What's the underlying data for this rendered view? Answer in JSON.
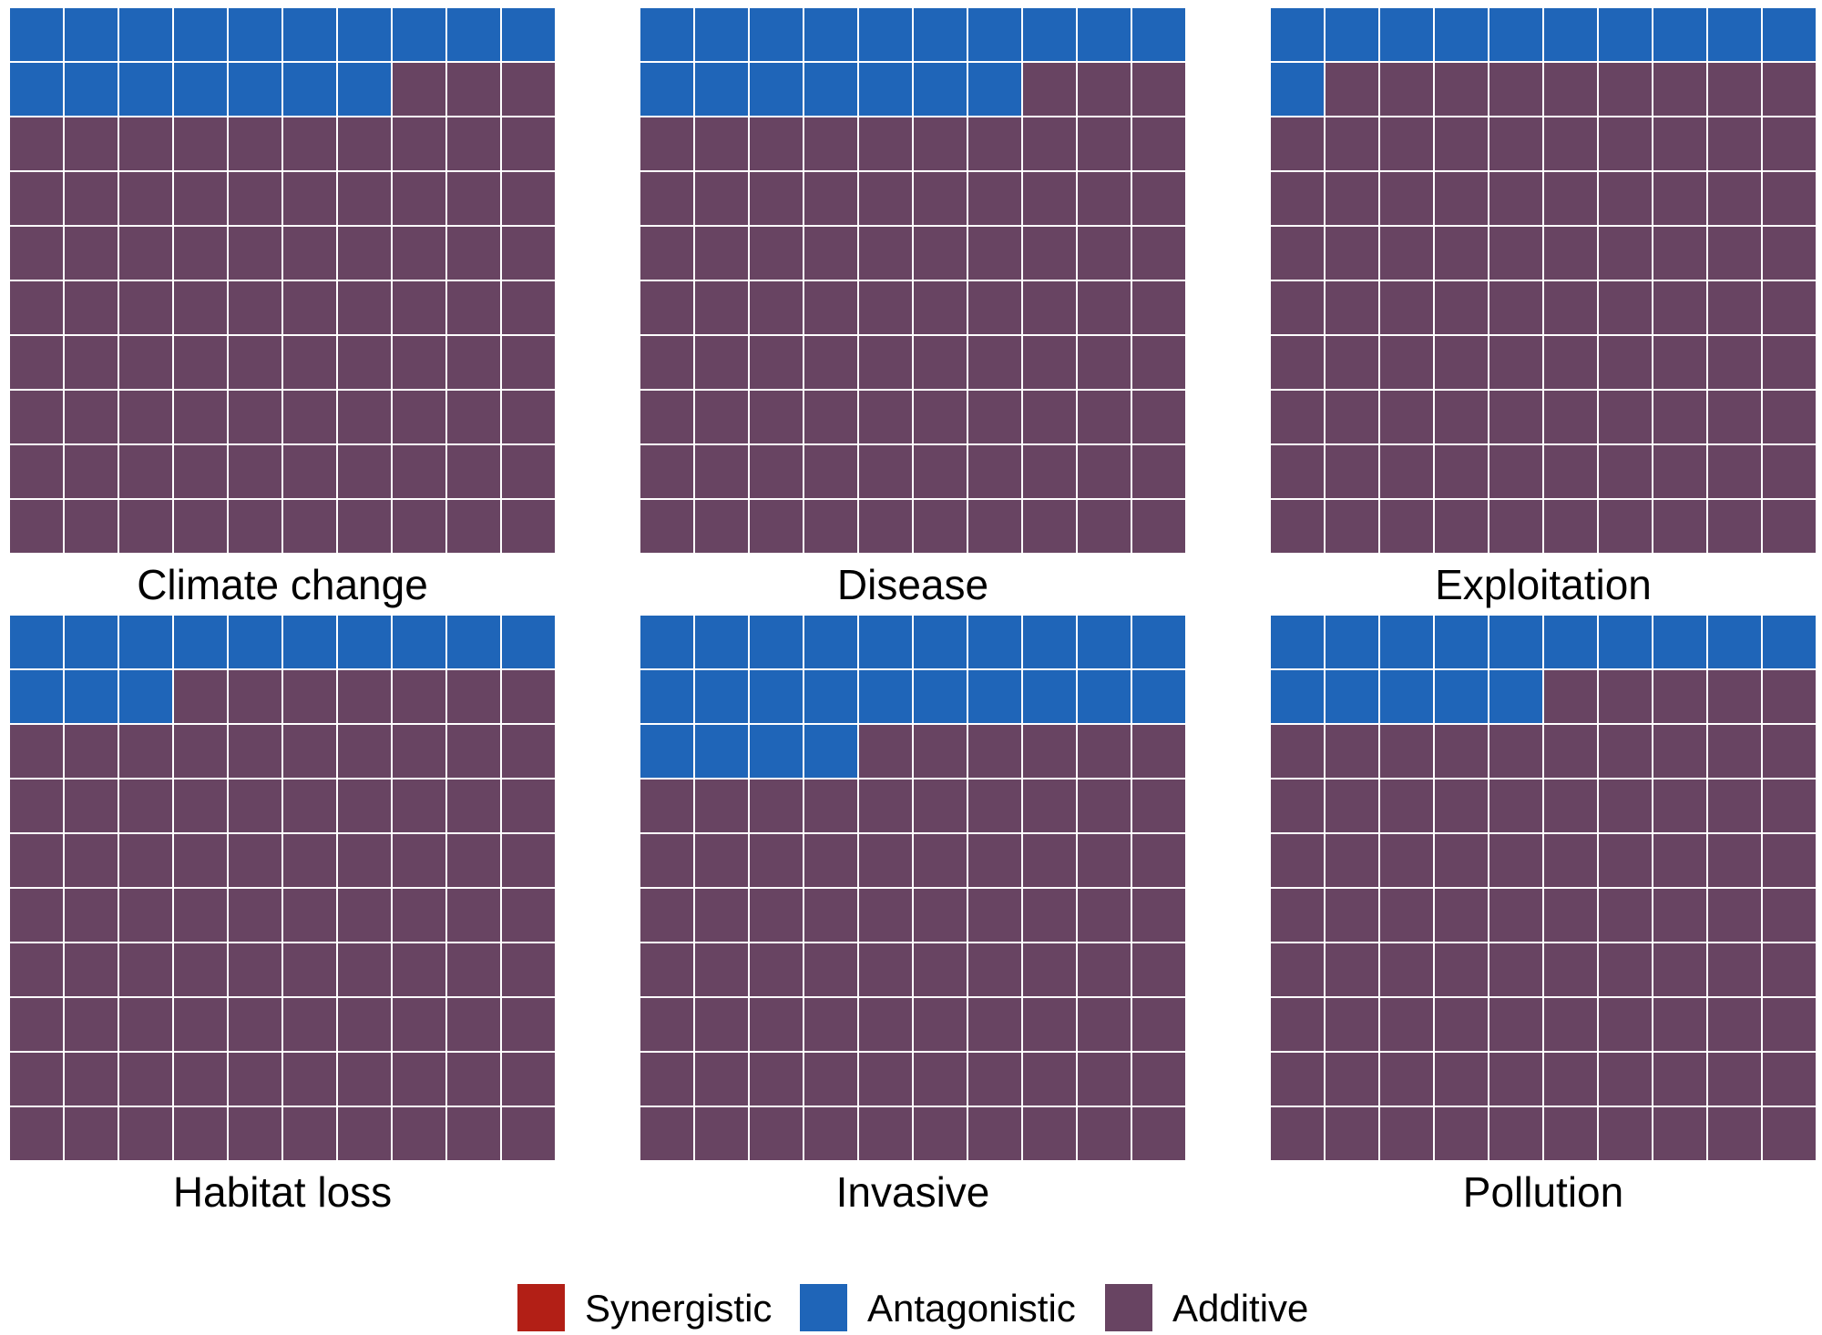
{
  "chart_data": {
    "type": "waffle",
    "grid": {
      "rows": 10,
      "cols": 10
    },
    "fill_order": "row-wise from top-left",
    "categories": [
      "Synergistic",
      "Antagonistic",
      "Additive"
    ],
    "colors": {
      "Synergistic": "#b21f16",
      "Antagonistic": "#1f65b8",
      "Additive": "#684462",
      "cell_border": "#ffffff"
    },
    "panels": [
      {
        "title": "Climate change",
        "values": {
          "Synergistic": 0,
          "Antagonistic": 17,
          "Additive": 83
        }
      },
      {
        "title": "Disease",
        "values": {
          "Synergistic": 0,
          "Antagonistic": 17,
          "Additive": 83
        }
      },
      {
        "title": "Exploitation",
        "values": {
          "Synergistic": 0,
          "Antagonistic": 11,
          "Additive": 89
        }
      },
      {
        "title": "Habitat loss",
        "values": {
          "Synergistic": 0,
          "Antagonistic": 13,
          "Additive": 87
        }
      },
      {
        "title": "Invasive",
        "values": {
          "Synergistic": 0,
          "Antagonistic": 24,
          "Additive": 76
        }
      },
      {
        "title": "Pollution",
        "values": {
          "Synergistic": 0,
          "Antagonistic": 15,
          "Additive": 85
        }
      }
    ],
    "legend": {
      "position": "bottom",
      "entries": [
        "Synergistic",
        "Antagonistic",
        "Additive"
      ]
    }
  }
}
